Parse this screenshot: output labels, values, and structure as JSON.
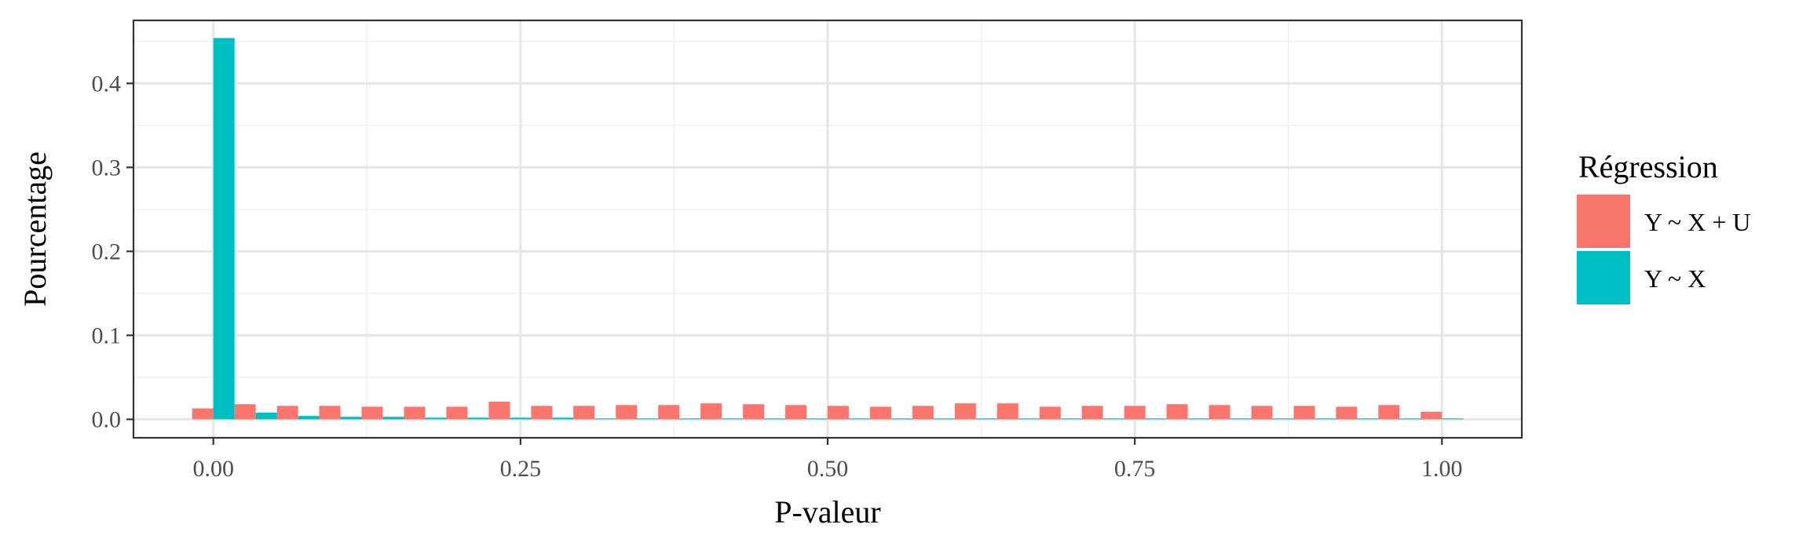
{
  "chart_data": {
    "type": "bar",
    "title": "",
    "xlabel": "P-valeur",
    "ylabel": "Pourcentage",
    "xlim": [
      -0.065,
      1.065
    ],
    "ylim": [
      -0.022,
      0.475
    ],
    "x_ticks": [
      0.0,
      0.25,
      0.5,
      0.75,
      1.0
    ],
    "x_tick_labels": [
      "0.00",
      "0.25",
      "0.50",
      "0.75",
      "1.00"
    ],
    "y_ticks": [
      0.0,
      0.1,
      0.2,
      0.3,
      0.4
    ],
    "y_tick_labels": [
      "0.0",
      "0.1",
      "0.2",
      "0.3",
      "0.4"
    ],
    "grid": true,
    "legend_position": "right",
    "legend_title": "Régression",
    "bin_width": 0.0345,
    "x": [
      0.0,
      0.0345,
      0.069,
      0.1034,
      0.1379,
      0.1724,
      0.2069,
      0.2414,
      0.2759,
      0.3103,
      0.3448,
      0.3793,
      0.4138,
      0.4483,
      0.4828,
      0.5172,
      0.5517,
      0.5862,
      0.6207,
      0.6552,
      0.6897,
      0.7241,
      0.7586,
      0.7931,
      0.8276,
      0.8621,
      0.8966,
      0.931,
      0.9655,
      1.0
    ],
    "series": [
      {
        "name": "Y ~ X + U",
        "color": "#F8766D",
        "values": [
          0.013,
          0.018,
          0.016,
          0.016,
          0.015,
          0.015,
          0.015,
          0.021,
          0.016,
          0.016,
          0.017,
          0.017,
          0.019,
          0.018,
          0.017,
          0.016,
          0.015,
          0.016,
          0.019,
          0.019,
          0.015,
          0.016,
          0.016,
          0.018,
          0.017,
          0.016,
          0.016,
          0.015,
          0.017,
          0.009
        ]
      },
      {
        "name": "Y ~ X",
        "color": "#00BFC4",
        "values": [
          0.454,
          0.008,
          0.004,
          0.003,
          0.003,
          0.002,
          0.002,
          0.002,
          0.002,
          0.001,
          0.001,
          0.001,
          0.001,
          0.001,
          0.001,
          0.001,
          0.001,
          0.001,
          0.001,
          0.001,
          0.001,
          0.001,
          0.001,
          0.001,
          0.001,
          0.001,
          0.001,
          0.001,
          0.001,
          0.001
        ]
      }
    ]
  }
}
